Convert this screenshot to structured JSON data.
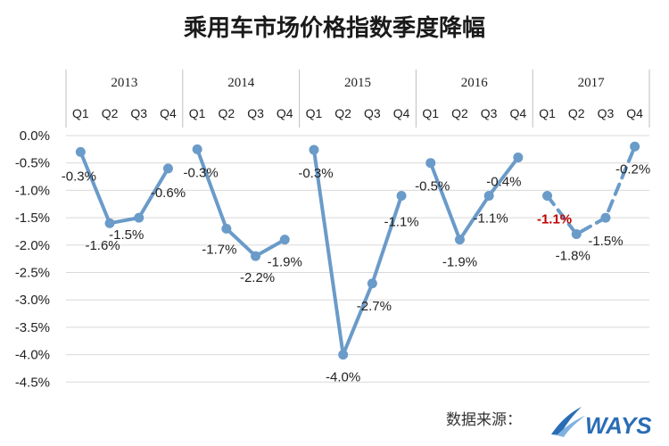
{
  "chart_data": {
    "type": "line",
    "title": "乘用车市场价格指数季度降幅",
    "years": [
      "2013",
      "2014",
      "2015",
      "2016",
      "2017"
    ],
    "quarters": [
      "Q1",
      "Q2",
      "Q3",
      "Q4"
    ],
    "yticks": [
      "0.0%",
      "-0.5%",
      "-1.0%",
      "-1.5%",
      "-2.0%",
      "-2.5%",
      "-3.0%",
      "-3.5%",
      "-4.0%",
      "-4.5%"
    ],
    "ylim": [
      -4.5,
      0
    ],
    "series": [
      {
        "values": [
          -0.3,
          -1.6,
          -1.5,
          -0.6
        ],
        "labels": [
          "-0.3%",
          "-1.6%",
          "-1.5%",
          "-0.6%"
        ]
      },
      {
        "values": [
          -0.25,
          -1.7,
          -2.2,
          -1.9
        ],
        "labels": [
          "-0.3%",
          "-1.7%",
          "-2.2%",
          "-1.9%"
        ]
      },
      {
        "values": [
          -0.26,
          -4.0,
          -2.7,
          -1.1
        ],
        "labels": [
          "-0.3%",
          "-4.0%",
          "-2.7%",
          "-1.1%"
        ]
      },
      {
        "values": [
          -0.5,
          -1.9,
          -1.1,
          -0.4
        ],
        "labels": [
          "-0.5%",
          "-1.9%",
          "-1.1%",
          "-0.4%"
        ]
      },
      {
        "values": [
          -1.1,
          -1.8,
          -1.5,
          -0.2
        ],
        "labels": [
          "-1.1%",
          "-1.8%",
          "-1.5%",
          "-0.2%"
        ],
        "dashed": true,
        "highlight_first": true
      }
    ],
    "line_color": "#6a9bc9",
    "highlight_color": "#c00000",
    "grid": true
  },
  "footer": {
    "source_label": "数据来源：",
    "logo_text": "WAYS"
  }
}
